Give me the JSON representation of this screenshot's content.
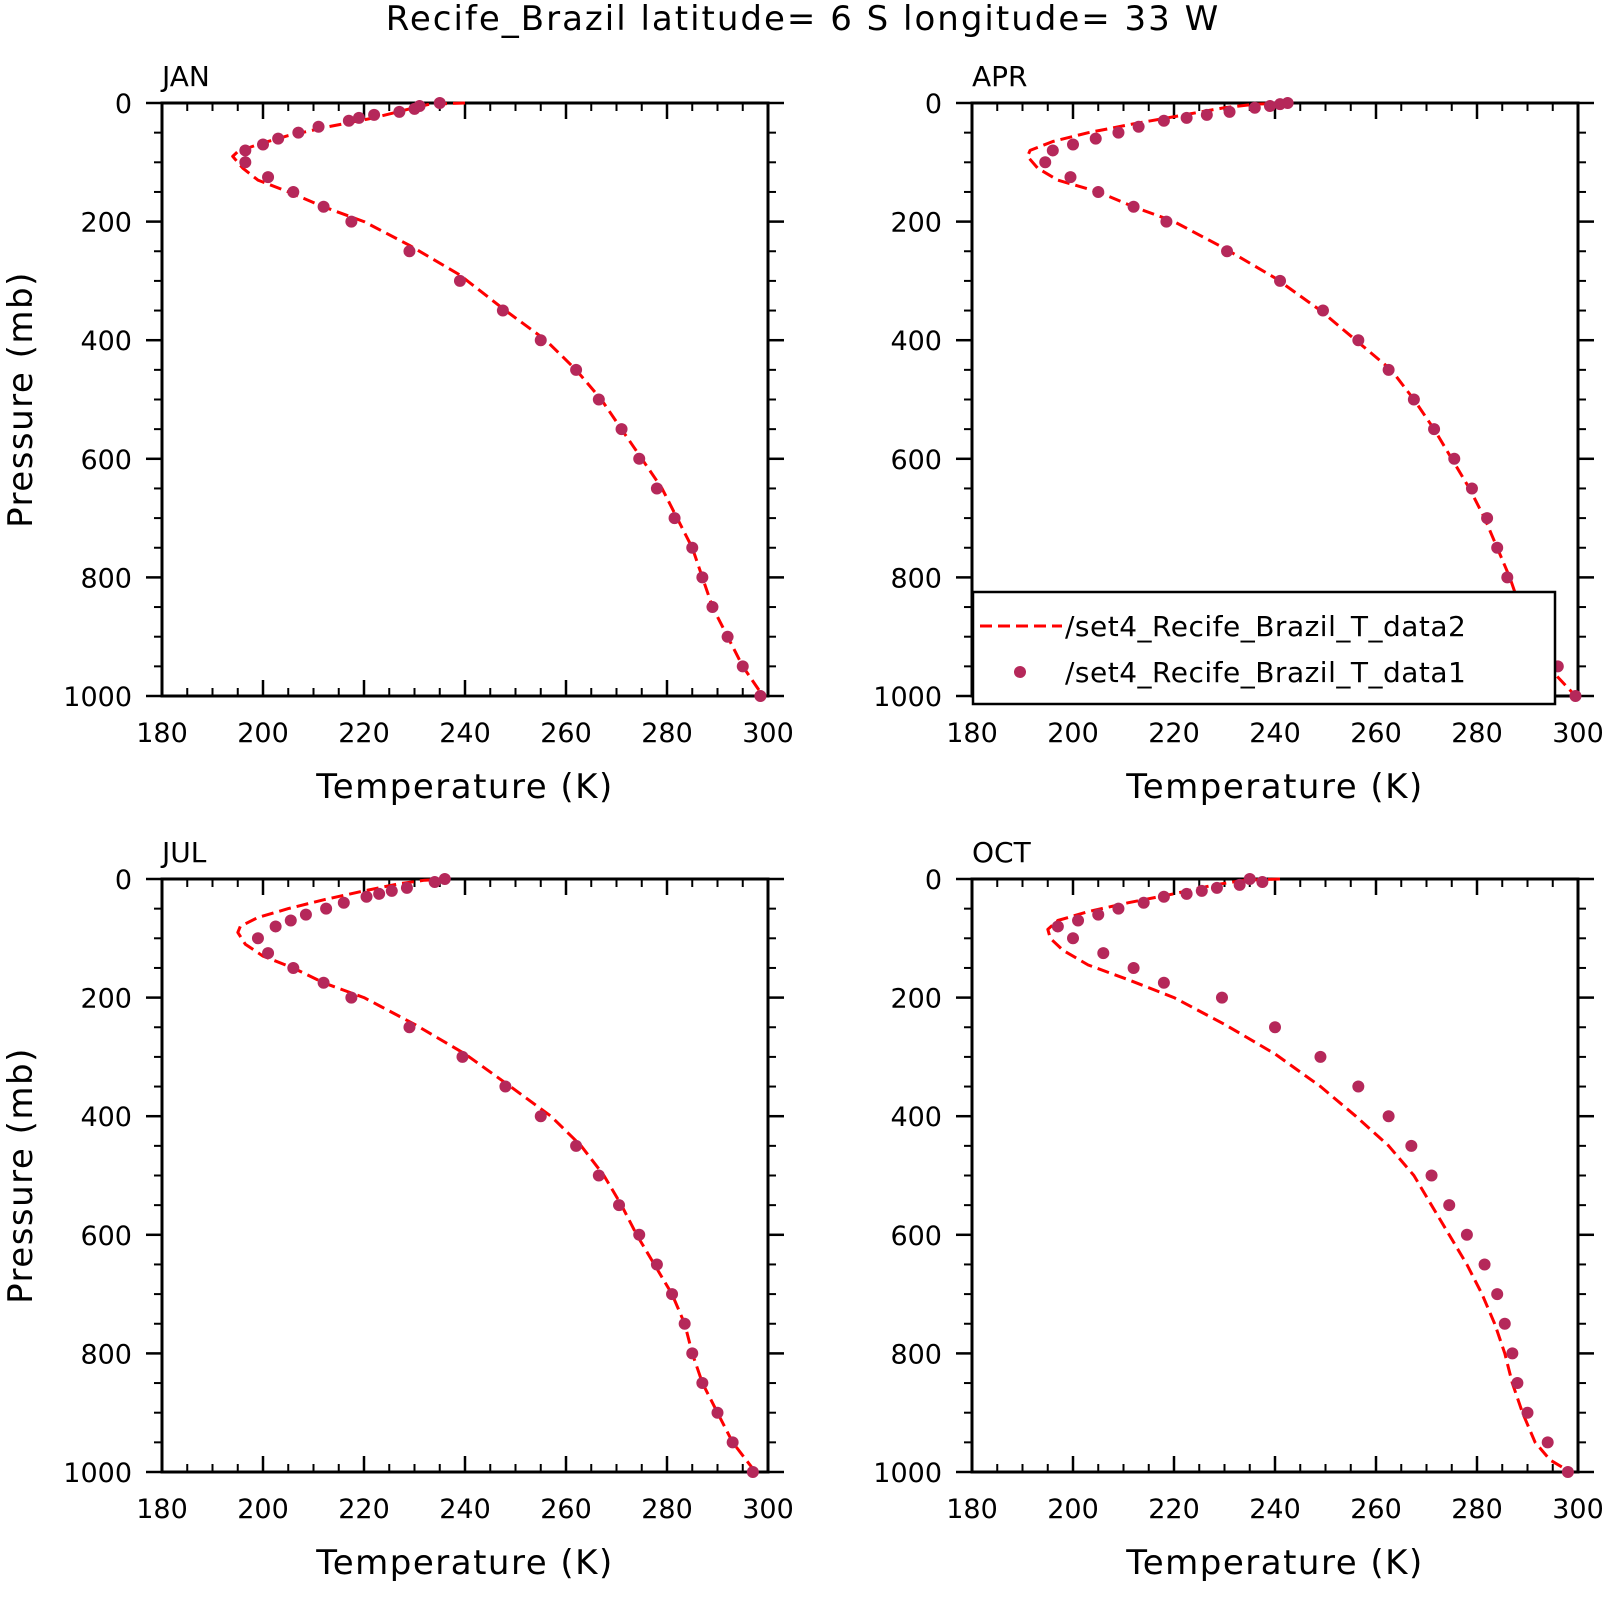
{
  "title": "Recife_Brazil  latitude= 6 S longitude= 33 W",
  "colors": {
    "model_line": "#ff0000",
    "obs_marker": "#b5285a",
    "axis": "#000000"
  },
  "legend": {
    "placement": "lower-right of APR panel",
    "entries": [
      {
        "label": "/set4_Recife_Brazil_T_data2",
        "style": "dashed-line",
        "color": "#ff0000"
      },
      {
        "label": "/set4_Recife_Brazil_T_data1",
        "style": "marker",
        "color": "#b5285a"
      }
    ]
  },
  "chart_data": [
    {
      "type": "line",
      "panel": "JAN",
      "xlabel": "Temperature (K)",
      "ylabel": "Pressure (mb)",
      "xlim": [
        180,
        300
      ],
      "ylim": [
        1000,
        0
      ],
      "xticks": [
        180,
        200,
        220,
        240,
        260,
        280,
        300
      ],
      "yticks": [
        0,
        200,
        400,
        600,
        800,
        1000
      ],
      "series": [
        {
          "name": "/set4_Recife_Brazil_T_data2",
          "style": "dashed-line",
          "x": [
            240,
            233,
            229,
            222,
            213,
            205,
            199,
            195,
            194,
            196,
            199,
            205,
            212,
            220,
            229,
            239,
            248,
            256,
            262,
            267,
            271,
            275,
            279,
            282,
            285,
            287,
            289,
            292,
            295,
            299
          ],
          "y": [
            0,
            2,
            10,
            25,
            40,
            55,
            70,
            82,
            90,
            110,
            130,
            150,
            175,
            200,
            240,
            290,
            350,
            400,
            450,
            500,
            550,
            600,
            650,
            700,
            750,
            800,
            850,
            900,
            950,
            1000
          ]
        },
        {
          "name": "/set4_Recife_Brazil_T_data1",
          "style": "marker",
          "x": [
            235,
            231,
            230,
            227,
            222,
            219,
            217,
            211,
            207,
            203,
            200,
            196.5,
            196.5,
            201,
            206,
            212,
            217.5,
            229,
            239,
            247.5,
            255,
            262,
            266.5,
            271,
            274.5,
            278,
            281.5,
            285,
            287,
            289,
            292,
            295,
            298.5
          ],
          "y": [
            0,
            5,
            10,
            15,
            20,
            25,
            30,
            40,
            50,
            60,
            70,
            80,
            100,
            125,
            150,
            175,
            200,
            250,
            300,
            350,
            400,
            450,
            500,
            550,
            600,
            650,
            700,
            750,
            800,
            850,
            900,
            950,
            1000
          ]
        }
      ]
    },
    {
      "type": "line",
      "panel": "APR",
      "xlabel": "Temperature (K)",
      "ylabel": "",
      "xlim": [
        180,
        300
      ],
      "ylim": [
        1000,
        0
      ],
      "xticks": [
        180,
        200,
        220,
        240,
        260,
        280,
        300
      ],
      "yticks": [
        0,
        200,
        400,
        600,
        800,
        1000
      ],
      "series": [
        {
          "name": "/set4_Recife_Brazil_T_data2",
          "style": "dashed-line",
          "x": [
            242,
            236,
            230,
            222,
            212,
            203,
            196,
            191.5,
            191,
            193,
            197,
            205,
            212,
            220,
            230,
            240,
            249,
            256,
            263,
            267.5,
            271.5,
            275,
            278.5,
            281.5,
            284,
            286.5,
            288.5,
            291,
            294,
            299.5
          ],
          "y": [
            0,
            2,
            8,
            20,
            35,
            50,
            65,
            80,
            90,
            110,
            130,
            150,
            175,
            200,
            245,
            295,
            350,
            400,
            450,
            500,
            550,
            600,
            650,
            700,
            750,
            800,
            850,
            900,
            950,
            1000
          ]
        },
        {
          "name": "/set4_Recife_Brazil_T_data1",
          "style": "marker",
          "x": [
            242.5,
            241,
            239,
            236,
            231,
            226.5,
            222.5,
            218,
            213,
            209,
            204.5,
            200,
            196,
            194.5,
            199.5,
            205,
            212,
            218.5,
            230.5,
            241,
            249.5,
            256.5,
            262.5,
            267.5,
            271.5,
            275.5,
            279,
            282,
            284,
            286,
            288,
            289.5,
            293,
            296,
            299.5
          ],
          "y": [
            0,
            2,
            5,
            8,
            15,
            20,
            25,
            30,
            40,
            50,
            60,
            70,
            80,
            100,
            125,
            150,
            175,
            200,
            250,
            300,
            350,
            400,
            450,
            500,
            550,
            600,
            650,
            700,
            750,
            800,
            850,
            900,
            950,
            950,
            1000
          ]
        }
      ]
    },
    {
      "type": "line",
      "panel": "JUL",
      "xlabel": "Temperature (K)",
      "ylabel": "Pressure (mb)",
      "xlim": [
        180,
        300
      ],
      "ylim": [
        1000,
        0
      ],
      "xticks": [
        180,
        200,
        220,
        240,
        260,
        280,
        300
      ],
      "yticks": [
        0,
        200,
        400,
        600,
        800,
        1000
      ],
      "series": [
        {
          "name": "/set4_Recife_Brazil_T_data2",
          "style": "dashed-line",
          "x": [
            237,
            232,
            227,
            220,
            212,
            205,
            199,
            195.5,
            195,
            196.5,
            200,
            206,
            212,
            220,
            230,
            240,
            249,
            257,
            263,
            267.5,
            271,
            274,
            277.5,
            281,
            283.5,
            285,
            287,
            290,
            293,
            297.5
          ],
          "y": [
            0,
            2,
            8,
            20,
            35,
            50,
            65,
            80,
            90,
            110,
            130,
            150,
            175,
            200,
            245,
            295,
            350,
            400,
            450,
            500,
            550,
            600,
            650,
            700,
            750,
            800,
            850,
            900,
            950,
            1000
          ]
        },
        {
          "name": "/set4_Recife_Brazil_T_data1",
          "style": "marker",
          "x": [
            236,
            234,
            228.5,
            225.5,
            223,
            220.5,
            216,
            212.5,
            208.5,
            205.5,
            202.5,
            199,
            201,
            206,
            212,
            217.5,
            229,
            239.5,
            248,
            255,
            262,
            266.5,
            270.5,
            274.5,
            278,
            281,
            283.5,
            285,
            287,
            290,
            293,
            297
          ],
          "y": [
            0,
            5,
            15,
            20,
            25,
            30,
            40,
            50,
            60,
            70,
            80,
            100,
            125,
            150,
            175,
            200,
            250,
            300,
            350,
            400,
            450,
            500,
            550,
            600,
            650,
            700,
            750,
            800,
            850,
            900,
            950,
            1000
          ]
        }
      ]
    },
    {
      "type": "line",
      "panel": "OCT",
      "xlabel": "Temperature (K)",
      "ylabel": "",
      "xlim": [
        180,
        300
      ],
      "ylim": [
        1000,
        0
      ],
      "xticks": [
        180,
        200,
        220,
        240,
        260,
        280,
        300
      ],
      "yticks": [
        0,
        200,
        400,
        600,
        800,
        1000
      ],
      "series": [
        {
          "name": "/set4_Recife_Brazil_T_data2",
          "style": "dashed-line",
          "x": [
            241,
            234,
            228,
            220,
            211,
            203,
            197,
            195,
            195.5,
            198,
            203,
            211,
            220,
            230,
            240,
            249,
            256,
            262.5,
            267.5,
            271,
            274.5,
            278,
            281,
            283.5,
            285.5,
            287,
            289,
            291.5,
            294.5,
            298.5
          ],
          "y": [
            0,
            2,
            10,
            25,
            40,
            55,
            70,
            85,
            100,
            120,
            145,
            170,
            200,
            245,
            295,
            350,
            400,
            450,
            500,
            550,
            600,
            650,
            700,
            750,
            800,
            850,
            900,
            950,
            980,
            1000
          ]
        },
        {
          "name": "/set4_Recife_Brazil_T_data1",
          "style": "marker",
          "x": [
            237.5,
            235,
            233,
            228.5,
            225.5,
            222.5,
            218,
            214,
            209,
            205,
            201,
            197,
            200,
            206,
            212,
            218,
            229.5,
            240,
            249,
            256.5,
            262.5,
            267,
            271,
            274.5,
            278,
            281.5,
            284,
            285.5,
            287,
            288,
            290,
            294,
            298
          ],
          "y": [
            5,
            0,
            10,
            15,
            20,
            25,
            30,
            40,
            50,
            60,
            70,
            80,
            100,
            125,
            150,
            175,
            200,
            250,
            300,
            350,
            400,
            450,
            500,
            550,
            600,
            650,
            700,
            750,
            800,
            850,
            900,
            950,
            1000
          ]
        }
      ]
    }
  ]
}
